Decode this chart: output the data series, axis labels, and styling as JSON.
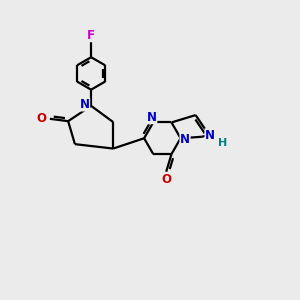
{
  "background_color": "#ebebeb",
  "atom_color_N": "#0000cc",
  "atom_color_O": "#cc0000",
  "atom_color_F": "#cc00cc",
  "atom_color_H": "#008080",
  "line_color": "#000000",
  "line_width": 1.6,
  "figsize": [
    3.0,
    3.0
  ],
  "dpi": 100,
  "xlim": [
    0,
    10
  ],
  "ylim": [
    0,
    10
  ]
}
